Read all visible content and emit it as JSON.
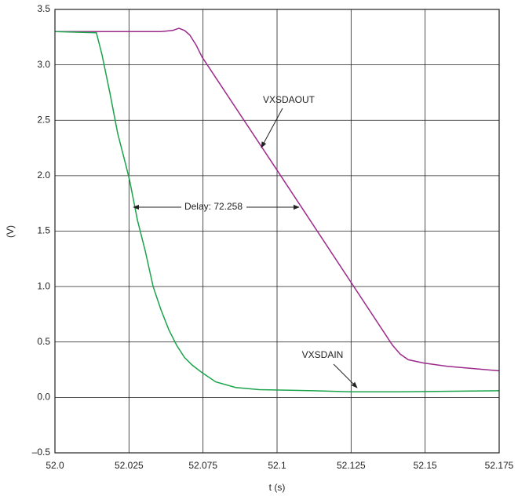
{
  "chart_data": {
    "type": "line",
    "xlabel": "t (s)",
    "ylabel": "(V)",
    "xlim": [
      52.0,
      52.175
    ],
    "xticks": [
      {
        "value": 52.0,
        "label": "52.0"
      },
      52.025,
      52.075,
      52.1,
      52.125,
      52.15,
      52.175
    ],
    "ylim": [
      -0.5,
      3.5
    ],
    "yticks": [
      {
        "value": -0.5,
        "label": "–0.5"
      },
      {
        "value": 0,
        "label": "0.0"
      },
      0.5,
      {
        "value": 1,
        "label": "1.0"
      },
      1.5,
      {
        "value": 2,
        "label": "2.0"
      },
      2.5,
      {
        "value": 3,
        "label": "3.0"
      },
      3.5
    ],
    "grid": true,
    "series": [
      {
        "name": "VXSDAOUT",
        "color": "#9c2a8c",
        "x": [
          52.0,
          52.0466,
          52.0545,
          52.0587,
          52.0625,
          52.066,
          52.0703,
          52.0744,
          52.1,
          52.139,
          52.1416,
          52.1443,
          52.1496,
          52.1575,
          52.175
        ],
        "values": [
          3.3,
          3.3,
          3.31,
          3.33,
          3.31,
          3.27,
          3.18,
          3.07,
          2.05,
          0.47,
          0.39,
          0.34,
          0.31,
          0.28,
          0.24
        ]
      },
      {
        "name": "VXSDAIN",
        "color": "#1aa34a",
        "x": [
          52.0,
          52.014,
          52.0159,
          52.0186,
          52.0212,
          52.0239,
          52.0254,
          52.0307,
          52.036,
          52.0413,
          52.0466,
          52.0519,
          52.0572,
          52.0625,
          52.0678,
          52.0747,
          52.0793,
          52.086,
          52.094,
          52.1124,
          52.125,
          52.139,
          52.175
        ],
        "values": [
          3.3,
          3.29,
          3.09,
          2.74,
          2.38,
          2.1,
          1.96,
          1.6,
          1.32,
          1.0,
          0.79,
          0.61,
          0.47,
          0.36,
          0.29,
          0.22,
          0.14,
          0.09,
          0.07,
          0.06,
          0.05,
          0.05,
          0.06
        ]
      }
    ],
    "annotations": [
      "Delay: 72.258"
    ]
  }
}
